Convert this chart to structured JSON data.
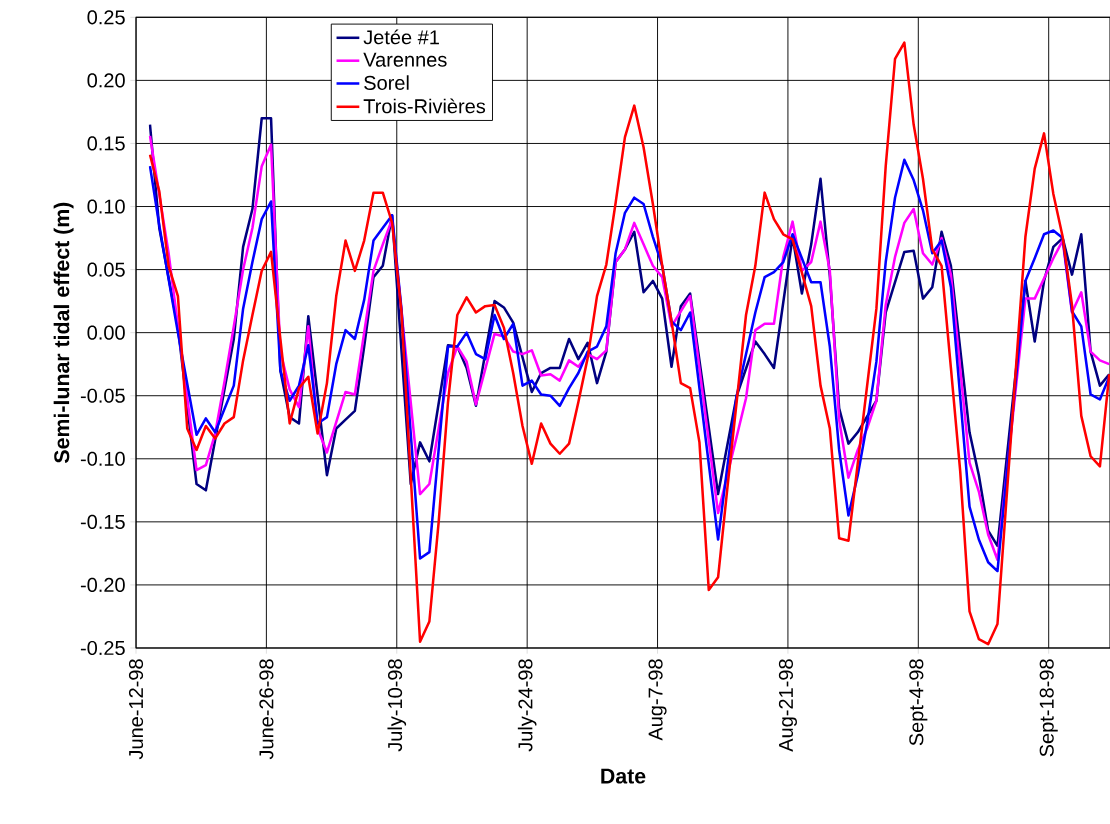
{
  "chart_data": {
    "type": "line",
    "xlabel": "Date",
    "ylabel": "Semi-lunar tidal effect (m)",
    "xlim": [
      "1998-06-12",
      "1998-09-24T14:00"
    ],
    "xticks": [
      {
        "value": "1998-06-12",
        "label": "June-12-98"
      },
      {
        "value": "1998-06-26",
        "label": "June-26-98"
      },
      {
        "value": "1998-07-10",
        "label": "July-10-98"
      },
      {
        "value": "1998-07-24",
        "label": "July-24-98"
      },
      {
        "value": "1998-08-07",
        "label": "Aug-7-98"
      },
      {
        "value": "1998-08-21",
        "label": "Aug-21-98"
      },
      {
        "value": "1998-09-04",
        "label": "Sept-4-98"
      },
      {
        "value": "1998-09-18",
        "label": "Sept-18-98"
      }
    ],
    "ylim": [
      -0.25,
      0.25
    ],
    "yticks": [
      {
        "value": -0.25,
        "label": "-0.25"
      },
      {
        "value": -0.2,
        "label": "-0.20"
      },
      {
        "value": -0.15,
        "label": "-0.15"
      },
      {
        "value": -0.1,
        "label": "-0.10"
      },
      {
        "value": -0.05,
        "label": "-0.05"
      },
      {
        "value": 0,
        "label": "0.00"
      },
      {
        "value": 0.05,
        "label": "0.05"
      },
      {
        "value": 0.1,
        "label": "0.10"
      },
      {
        "value": 0.15,
        "label": "0.15"
      },
      {
        "value": 0.2,
        "label": "0.20"
      },
      {
        "value": 0.25,
        "label": "0.25"
      }
    ],
    "grid": true,
    "legend": "top",
    "series": [
      {
        "name": "Jetée #1",
        "color": "#000080",
        "x": [
          "1998-06-13T12:00",
          "1998-06-14T12:00",
          "1998-06-16T12:00",
          "1998-06-18T12:00",
          "1998-06-19T12:00",
          "1998-06-22T12:00",
          "1998-06-23T12:00",
          "1998-06-24T12:00",
          "1998-06-25T12:00",
          "1998-06-26T12:00",
          "1998-06-27T12:00",
          "1998-06-28T12:00",
          "1998-06-29T12:00",
          "1998-06-30T12:00",
          "1998-07-02T12:00",
          "1998-07-03T12:00",
          "1998-07-04T12:00",
          "1998-07-05T12:00",
          "1998-07-06T12:00",
          "1998-07-07T12:00",
          "1998-07-08T12:00",
          "1998-07-09T12:00",
          "1998-07-11T12:00",
          "1998-07-12T12:00",
          "1998-07-13T12:00",
          "1998-07-15T12:00",
          "1998-07-16T12:00",
          "1998-07-17T12:00",
          "1998-07-18T12:00",
          "1998-07-20T12:00",
          "1998-07-21T12:00",
          "1998-07-22T12:00",
          "1998-07-24T12:00",
          "1998-07-25T12:00",
          "1998-07-26T12:00",
          "1998-07-27T12:00",
          "1998-07-28T12:00",
          "1998-07-29T12:00",
          "1998-07-30T12:00",
          "1998-07-31T12:00",
          "1998-08-01T12:00",
          "1998-08-02T12:00",
          "1998-08-03T12:00",
          "1998-08-04T12:00",
          "1998-08-05T12:00",
          "1998-08-06T12:00",
          "1998-08-07T12:00",
          "1998-08-08T12:00",
          "1998-08-09T12:00",
          "1998-08-10T12:00",
          "1998-08-13T12:00",
          "1998-08-15T12:00",
          "1998-08-17T12:00",
          "1998-08-18T12:00",
          "1998-08-19T12:00",
          "1998-08-21T12:00",
          "1998-08-22T12:00",
          "1998-08-23T12:00",
          "1998-08-24T12:00",
          "1998-08-25T12:00",
          "1998-08-26T12:00",
          "1998-08-27T12:00",
          "1998-08-28T12:00",
          "1998-08-30T12:00",
          "1998-08-31T12:00",
          "1998-09-02T12:00",
          "1998-09-03T12:00",
          "1998-09-04T12:00",
          "1998-09-05T12:00",
          "1998-09-06T12:00",
          "1998-09-07T12:00",
          "1998-09-09T12:00",
          "1998-09-10T12:00",
          "1998-09-11T12:00",
          "1998-09-12T12:00",
          "1998-09-15T12:00",
          "1998-09-16T12:00",
          "1998-09-17T12:00",
          "1998-09-18T12:00",
          "1998-09-19T12:00",
          "1998-09-20T12:00",
          "1998-09-21T12:00",
          "1998-09-22T12:00",
          "1998-09-23T12:00",
          "1998-09-24T12:00"
        ],
        "values": [
          0.165,
          0.083,
          0.004,
          -0.12,
          -0.125,
          -0.005,
          0.068,
          0.098,
          0.17,
          0.17,
          -0.03,
          -0.067,
          -0.072,
          0.013,
          -0.113,
          -0.076,
          -0.069,
          -0.062,
          -0.011,
          0.044,
          0.053,
          0.093,
          -0.12,
          -0.087,
          -0.102,
          -0.01,
          -0.011,
          -0.028,
          -0.058,
          0.025,
          0.02,
          0.008,
          -0.047,
          -0.032,
          -0.028,
          -0.028,
          -0.005,
          -0.021,
          -0.008,
          -0.04,
          -0.015,
          0.056,
          0.066,
          0.08,
          0.032,
          0.041,
          0.027,
          -0.027,
          0.021,
          0.031,
          -0.128,
          -0.05,
          -0.007,
          -0.017,
          -0.028,
          0.076,
          0.031,
          0.07,
          0.122,
          0.045,
          -0.06,
          -0.088,
          -0.079,
          -0.054,
          0.016,
          0.064,
          0.065,
          0.027,
          0.036,
          0.08,
          0.053,
          -0.079,
          -0.113,
          -0.157,
          -0.169,
          0.041,
          -0.007,
          0.041,
          0.068,
          0.075,
          0.046,
          0.078,
          -0.015,
          -0.042,
          -0.033
        ]
      },
      {
        "name": "Varennes",
        "color": "#ff00ff",
        "x": [
          "1998-06-13T12:00",
          "1998-06-15T12:00",
          "1998-06-18T12:00",
          "1998-06-19T12:00",
          "1998-06-20T12:00",
          "1998-06-21T12:00",
          "1998-06-22T12:00",
          "1998-06-23T12:00",
          "1998-06-24T12:00",
          "1998-06-25T12:00",
          "1998-06-26T12:00",
          "1998-06-27T12:00",
          "1998-06-28T12:00",
          "1998-06-29T12:00",
          "1998-06-30T12:00",
          "1998-07-01T12:00",
          "1998-07-02T12:00",
          "1998-07-04T12:00",
          "1998-07-05T12:00",
          "1998-07-07T12:00",
          "1998-07-08T12:00",
          "1998-07-09T12:00",
          "1998-07-12T12:00",
          "1998-07-13T12:00",
          "1998-07-15T12:00",
          "1998-07-16T12:00",
          "1998-07-17T12:00",
          "1998-07-18T12:00",
          "1998-07-20T12:00",
          "1998-07-21T12:00",
          "1998-07-22T12:00",
          "1998-07-23T12:00",
          "1998-07-24T12:00",
          "1998-07-25T12:00",
          "1998-07-26T12:00",
          "1998-07-27T12:00",
          "1998-07-28T12:00",
          "1998-07-29T12:00",
          "1998-07-30T12:00",
          "1998-07-31T12:00",
          "1998-08-01T12:00",
          "1998-08-02T12:00",
          "1998-08-03T12:00",
          "1998-08-04T12:00",
          "1998-08-05T12:00",
          "1998-08-06T12:00",
          "1998-08-07T12:00",
          "1998-08-08T12:00",
          "1998-08-09T12:00",
          "1998-08-10T12:00",
          "1998-08-13T12:00",
          "1998-08-16T12:00",
          "1998-08-17T12:00",
          "1998-08-18T12:00",
          "1998-08-19T12:00",
          "1998-08-20T12:00",
          "1998-08-21T12:00",
          "1998-08-22T12:00",
          "1998-08-23T12:00",
          "1998-08-24T12:00",
          "1998-08-25T12:00",
          "1998-08-26T12:00",
          "1998-08-27T12:00",
          "1998-08-28T12:00",
          "1998-08-29T12:00",
          "1998-08-30T12:00",
          "1998-08-31T12:00",
          "1998-09-01T12:00",
          "1998-09-02T12:00",
          "1998-09-03T12:00",
          "1998-09-04T12:00",
          "1998-09-05T12:00",
          "1998-09-06T12:00",
          "1998-09-07T12:00",
          "1998-09-09T12:00",
          "1998-09-10T12:00",
          "1998-09-11T12:00",
          "1998-09-12T12:00",
          "1998-09-15T12:00",
          "1998-09-16T12:00",
          "1998-09-18T12:00",
          "1998-09-19T12:00",
          "1998-09-20T12:00",
          "1998-09-21T12:00",
          "1998-09-22T12:00",
          "1998-09-23T12:00",
          "1998-09-24T12:00"
        ],
        "values": [
          0.156,
          0.063,
          -0.109,
          -0.105,
          -0.08,
          -0.039,
          0.005,
          0.05,
          0.083,
          0.132,
          0.149,
          -0.015,
          -0.045,
          -0.059,
          0.005,
          -0.076,
          -0.095,
          -0.047,
          -0.049,
          0.049,
          0.07,
          0.09,
          -0.128,
          -0.12,
          -0.032,
          -0.011,
          -0.023,
          -0.057,
          -0.001,
          -0.003,
          -0.015,
          -0.017,
          -0.014,
          -0.034,
          -0.033,
          -0.038,
          -0.022,
          -0.027,
          -0.017,
          -0.021,
          -0.014,
          0.056,
          0.066,
          0.087,
          0.07,
          0.053,
          0.044,
          0.005,
          0.017,
          0.029,
          -0.143,
          -0.052,
          0.002,
          0.007,
          0.007,
          0.06,
          0.088,
          0.049,
          0.056,
          0.088,
          0.049,
          -0.069,
          -0.115,
          -0.093,
          -0.076,
          -0.054,
          0.022,
          0.06,
          0.087,
          0.098,
          0.063,
          0.054,
          0.075,
          0.046,
          -0.103,
          -0.126,
          -0.16,
          -0.18,
          0.027,
          0.027,
          0.059,
          0.073,
          0.016,
          0.032,
          -0.015,
          -0.022,
          -0.025
        ]
      },
      {
        "name": "Sorel",
        "color": "#0000ff",
        "x": [
          "1998-06-13T12:00",
          "1998-06-14T12:00",
          "1998-06-16T12:00",
          "1998-06-18T12:00",
          "1998-06-19T12:00",
          "1998-06-20T12:00",
          "1998-06-22T12:00",
          "1998-06-23T12:00",
          "1998-06-24T12:00",
          "1998-06-25T12:00",
          "1998-06-26T12:00",
          "1998-06-27T12:00",
          "1998-06-28T12:00",
          "1998-06-29T12:00",
          "1998-06-30T12:00",
          "1998-07-01T12:00",
          "1998-07-02T12:00",
          "1998-07-03T12:00",
          "1998-07-04T12:00",
          "1998-07-05T12:00",
          "1998-07-06T12:00",
          "1998-07-07T12:00",
          "1998-07-09T12:00",
          "1998-07-10T12:00",
          "1998-07-12T12:00",
          "1998-07-13T12:00",
          "1998-07-15T12:00",
          "1998-07-16T12:00",
          "1998-07-17T12:00",
          "1998-07-18T12:00",
          "1998-07-19T12:00",
          "1998-07-20T12:00",
          "1998-07-21T12:00",
          "1998-07-22T12:00",
          "1998-07-23T12:00",
          "1998-07-24T12:00",
          "1998-07-25T12:00",
          "1998-07-26T12:00",
          "1998-07-27T12:00",
          "1998-07-28T12:00",
          "1998-07-29T12:00",
          "1998-07-30T12:00",
          "1998-07-31T12:00",
          "1998-08-01T12:00",
          "1998-08-02T12:00",
          "1998-08-03T12:00",
          "1998-08-04T12:00",
          "1998-08-05T12:00",
          "1998-08-06T12:00",
          "1998-08-07T12:00",
          "1998-08-08T12:00",
          "1998-08-09T12:00",
          "1998-08-10T12:00",
          "1998-08-13T12:00",
          "1998-08-14T12:00",
          "1998-08-15T12:00",
          "1998-08-17T12:00",
          "1998-08-18T12:00",
          "1998-08-19T12:00",
          "1998-08-20T12:00",
          "1998-08-21T12:00",
          "1998-08-23T12:00",
          "1998-08-24T12:00",
          "1998-08-25T12:00",
          "1998-08-26T12:00",
          "1998-08-27T12:00",
          "1998-08-28T12:00",
          "1998-08-29T12:00",
          "1998-08-30T12:00",
          "1998-08-31T12:00",
          "1998-09-01T12:00",
          "1998-09-02T12:00",
          "1998-09-03T12:00",
          "1998-09-04T12:00",
          "1998-09-05T12:00",
          "1998-09-06T12:00",
          "1998-09-07T12:00",
          "1998-09-09T12:00",
          "1998-09-10T12:00",
          "1998-09-11T12:00",
          "1998-09-12T12:00",
          "1998-09-15T12:00",
          "1998-09-16T12:00",
          "1998-09-17T12:00",
          "1998-09-18T12:00",
          "1998-09-19T12:00",
          "1998-09-20T12:00",
          "1998-09-21T12:00",
          "1998-09-22T12:00",
          "1998-09-23T12:00",
          "1998-09-24T12:00"
        ],
        "values": [
          0.132,
          0.085,
          0,
          -0.081,
          -0.068,
          -0.079,
          -0.042,
          0.019,
          0.056,
          0.09,
          0.104,
          -0.03,
          -0.054,
          -0.042,
          -0.01,
          -0.072,
          -0.067,
          -0.025,
          0.002,
          -0.005,
          0.026,
          0.073,
          0.093,
          0.019,
          -0.179,
          -0.174,
          -0.011,
          -0.011,
          0,
          -0.017,
          -0.021,
          0.014,
          -0.005,
          0.007,
          -0.042,
          -0.038,
          -0.049,
          -0.05,
          -0.058,
          -0.044,
          -0.032,
          -0.015,
          -0.011,
          0.005,
          0.063,
          0.095,
          0.107,
          0.102,
          0.076,
          0.053,
          0.009,
          0.002,
          0.016,
          -0.164,
          -0.106,
          -0.05,
          0.016,
          0.044,
          0.048,
          0.056,
          0.078,
          0.04,
          0.04,
          -0.011,
          -0.093,
          -0.145,
          -0.113,
          -0.072,
          -0.023,
          0.056,
          0.107,
          0.137,
          0.121,
          0.097,
          0.063,
          0.073,
          0.036,
          -0.138,
          -0.164,
          -0.182,
          -0.189,
          0.041,
          0.059,
          0.078,
          0.081,
          0.075,
          0.017,
          0.005,
          -0.049,
          -0.053,
          -0.035
        ]
      },
      {
        "name": "Trois-Rivières",
        "color": "#ff0000",
        "x": [
          "1998-06-13T12:00",
          "1998-06-14T12:00",
          "1998-06-15T12:00",
          "1998-06-16T12:00",
          "1998-06-17T12:00",
          "1998-06-18T12:00",
          "1998-06-19T12:00",
          "1998-06-20T12:00",
          "1998-06-21T12:00",
          "1998-06-22T12:00",
          "1998-06-23T12:00",
          "1998-06-24T12:00",
          "1998-06-25T12:00",
          "1998-06-26T12:00",
          "1998-06-27T12:00",
          "1998-06-28T12:00",
          "1998-06-29T12:00",
          "1998-06-30T12:00",
          "1998-07-01T12:00",
          "1998-07-02T12:00",
          "1998-07-03T12:00",
          "1998-07-04T12:00",
          "1998-07-05T12:00",
          "1998-07-06T12:00",
          "1998-07-07T12:00",
          "1998-07-08T12:00",
          "1998-07-09T12:00",
          "1998-07-10T12:00",
          "1998-07-12T12:00",
          "1998-07-13T12:00",
          "1998-07-14T12:00",
          "1998-07-15T12:00",
          "1998-07-16T12:00",
          "1998-07-17T12:00",
          "1998-07-18T12:00",
          "1998-07-19T12:00",
          "1998-07-20T12:00",
          "1998-07-21T12:00",
          "1998-07-22T12:00",
          "1998-07-23T12:00",
          "1998-07-24T12:00",
          "1998-07-25T12:00",
          "1998-07-26T12:00",
          "1998-07-27T12:00",
          "1998-07-28T12:00",
          "1998-07-29T12:00",
          "1998-07-30T12:00",
          "1998-07-31T12:00",
          "1998-08-01T12:00",
          "1998-08-02T12:00",
          "1998-08-03T12:00",
          "1998-08-04T12:00",
          "1998-08-05T12:00",
          "1998-08-06T12:00",
          "1998-08-07T12:00",
          "1998-08-08T12:00",
          "1998-08-09T12:00",
          "1998-08-10T12:00",
          "1998-08-11T12:00",
          "1998-08-12T12:00",
          "1998-08-13T12:00",
          "1998-08-14T12:00",
          "1998-08-16T12:00",
          "1998-08-17T12:00",
          "1998-08-18T12:00",
          "1998-08-19T12:00",
          "1998-08-20T12:00",
          "1998-08-21T12:00",
          "1998-08-23T12:00",
          "1998-08-24T12:00",
          "1998-08-25T12:00",
          "1998-08-26T12:00",
          "1998-08-27T12:00",
          "1998-08-30T12:00",
          "1998-08-31T12:00",
          "1998-09-01T12:00",
          "1998-09-02T12:00",
          "1998-09-03T12:00",
          "1998-09-04T12:00",
          "1998-09-05T12:00",
          "1998-09-06T12:00",
          "1998-09-07T12:00",
          "1998-09-08T12:00",
          "1998-09-09T12:00",
          "1998-09-10T12:00",
          "1998-09-11T12:00",
          "1998-09-12T12:00",
          "1998-09-15T12:00",
          "1998-09-16T12:00",
          "1998-09-17T12:00",
          "1998-09-18T12:00",
          "1998-09-19T12:00",
          "1998-09-20T12:00",
          "1998-09-21T12:00",
          "1998-09-22T12:00",
          "1998-09-23T12:00",
          "1998-09-24T12:00"
        ],
        "values": [
          0.141,
          0.112,
          0.053,
          0.029,
          -0.076,
          -0.093,
          -0.074,
          -0.084,
          -0.072,
          -0.067,
          -0.022,
          0.014,
          0.049,
          0.064,
          -0.005,
          -0.072,
          -0.044,
          -0.035,
          -0.08,
          -0.04,
          0.029,
          0.073,
          0.049,
          0.073,
          0.111,
          0.111,
          0.087,
          0.017,
          -0.245,
          -0.229,
          -0.15,
          -0.055,
          0.014,
          0.028,
          0.016,
          0.021,
          0.022,
          0.004,
          -0.032,
          -0.074,
          -0.104,
          -0.072,
          -0.088,
          -0.096,
          -0.088,
          -0.055,
          -0.02,
          0.029,
          0.054,
          0.103,
          0.155,
          0.18,
          0.147,
          0.102,
          0.053,
          0.009,
          -0.04,
          -0.044,
          -0.087,
          -0.204,
          -0.194,
          -0.123,
          0.014,
          0.053,
          0.111,
          0.09,
          0.078,
          0.074,
          0.021,
          -0.042,
          -0.076,
          -0.163,
          -0.165,
          0.019,
          0.132,
          0.217,
          0.23,
          0.165,
          0.122,
          0.066,
          0.053,
          -0.028,
          -0.11,
          -0.221,
          -0.243,
          -0.247,
          -0.231,
          0.076,
          0.13,
          0.158,
          0.11,
          0.076,
          0.022,
          -0.066,
          -0.098,
          -0.106,
          -0.033
        ]
      }
    ]
  }
}
